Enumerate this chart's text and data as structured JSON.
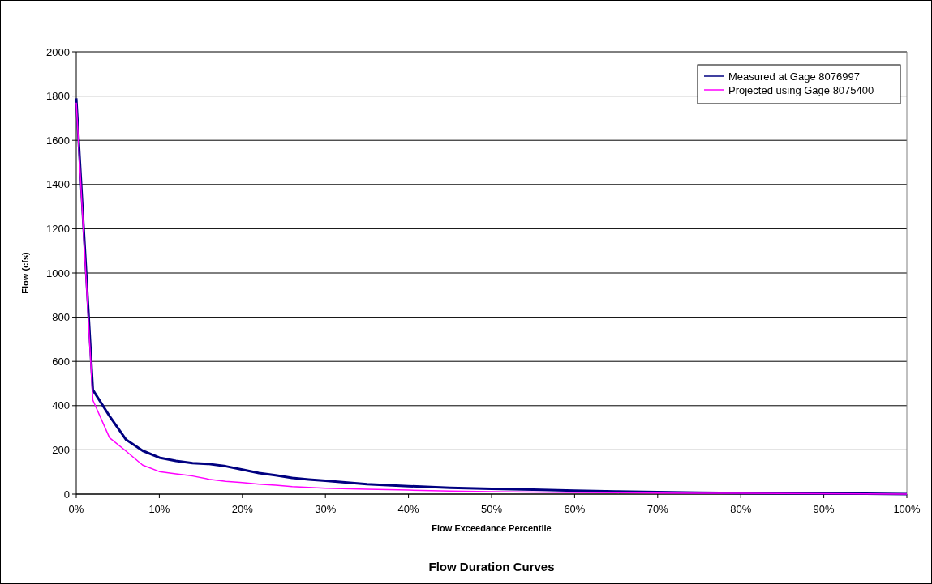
{
  "chart_data": {
    "type": "line",
    "title": "Flow Duration Curves",
    "xlabel": "Flow Exceedance Percentile",
    "ylabel": "Flow (cfs)",
    "x": [
      0,
      2,
      4,
      6,
      8,
      10,
      12,
      14,
      16,
      18,
      20,
      22,
      24,
      26,
      28,
      30,
      35,
      40,
      45,
      50,
      55,
      60,
      65,
      70,
      75,
      80,
      85,
      90,
      95,
      100
    ],
    "series": [
      {
        "name": "Measured at Gage 8076997",
        "color": "#000080",
        "values": [
          1790,
          471,
          353,
          246,
          196,
          165,
          150,
          140,
          136,
          126,
          111,
          95,
          85,
          73,
          66,
          60,
          45,
          36,
          28,
          24,
          20,
          16,
          12,
          9,
          6,
          5,
          4,
          3,
          2,
          0
        ]
      },
      {
        "name": "Projected using Gage 8075400",
        "color": "#ff00ff",
        "values": [
          1770,
          425,
          255,
          194,
          131,
          102,
          92,
          82,
          67,
          58,
          52,
          45,
          40,
          34,
          30,
          27,
          22,
          18,
          14,
          11,
          9,
          7,
          6,
          5,
          4,
          4,
          3,
          2,
          1,
          0
        ]
      }
    ],
    "xlim": [
      0,
      100
    ],
    "xticks": [
      {
        "value": 0,
        "label": "0%"
      },
      {
        "value": 10,
        "label": "10%"
      },
      {
        "value": 20,
        "label": "20%"
      },
      {
        "value": 30,
        "label": "30%"
      },
      {
        "value": 40,
        "label": "40%"
      },
      {
        "value": 50,
        "label": "50%"
      },
      {
        "value": 60,
        "label": "60%"
      },
      {
        "value": 70,
        "label": "70%"
      },
      {
        "value": 80,
        "label": "80%"
      },
      {
        "value": 90,
        "label": "90%"
      },
      {
        "value": 100,
        "label": "100%"
      }
    ],
    "ylim": [
      0,
      2000
    ],
    "yticks": [
      0,
      200,
      400,
      600,
      800,
      1000,
      1200,
      1400,
      1600,
      1800,
      2000
    ],
    "grid": "y",
    "legend": "top right",
    "marker": "none",
    "line_style": "solid"
  }
}
